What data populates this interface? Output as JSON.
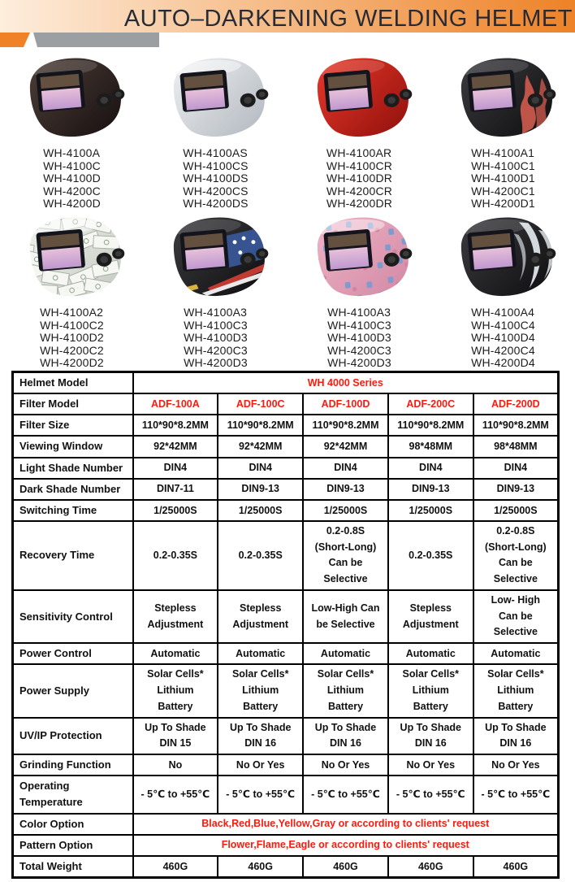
{
  "header": {
    "title": "AUTO–DARKENING WELDING HELMET",
    "title_color": "#262b36",
    "gradient_left": "#fdeedd",
    "gradient_right": "#ee8227",
    "accent_orange": "#ef8227",
    "accent_gray": "#9b9fa2"
  },
  "products": {
    "rows": [
      [
        {
          "style": "black",
          "models": [
            "WH-4100A",
            "WH-4100C",
            "WH-4100D",
            "WH-4200C",
            "WH-4200D"
          ]
        },
        {
          "style": "silver",
          "models": [
            "WH-4100AS",
            "WH-4100CS",
            "WH-4100DS",
            "WH-4200CS",
            "WH-4200DS"
          ]
        },
        {
          "style": "red",
          "models": [
            "WH-4100AR",
            "WH-4100CR",
            "WH-4100DR",
            "WH-4200CR",
            "WH-4200DR"
          ]
        },
        {
          "style": "flame",
          "models": [
            "WH-4100A1",
            "WH-4100C1",
            "WH-4100D1",
            "WH-4200C1",
            "WH-4200D1"
          ]
        }
      ],
      [
        {
          "style": "money",
          "models": [
            "WH-4100A2",
            "WH-4100C2",
            "WH-4100D2",
            "WH-4200C2",
            "WH-4200D2"
          ]
        },
        {
          "style": "eagle",
          "models": [
            "WH-4100A3",
            "WH-4100C3",
            "WH-4100D3",
            "WH-4200C3",
            "WH-4200D3"
          ]
        },
        {
          "style": "floral",
          "models": [
            "WH-4100A3",
            "WH-4100C3",
            "WH-4100D3",
            "WH-4200C3",
            "WH-4200D3"
          ]
        },
        {
          "style": "tribal",
          "models": [
            "WH-4100A4",
            "WH-4100C4",
            "WH-4100D4",
            "WH-4200C4",
            "WH-4200D4"
          ]
        }
      ]
    ],
    "styles": {
      "black": {
        "name": "black-helmet",
        "body1": "#4d3e37",
        "body2": "#171010",
        "accent": ""
      },
      "silver": {
        "name": "silver-helmet",
        "body1": "#eef0f2",
        "body2": "#b2b8bf",
        "accent": ""
      },
      "red": {
        "name": "red-helmet",
        "body1": "#e8392a",
        "body2": "#90100c",
        "accent": ""
      },
      "flame": {
        "name": "black-flame-helmet",
        "body1": "#3c3c40",
        "body2": "#0e0e10",
        "accent": "#c8574b"
      },
      "money": {
        "name": "dollar-print-helmet",
        "body1": "#f0f2ec",
        "body2": "#c4cac2",
        "accent": "#a5aea4"
      },
      "eagle": {
        "name": "flag-eagle-helmet",
        "body1": "#3c3c40",
        "body2": "#0e0e10",
        "accent": "#3a5a9c"
      },
      "floral": {
        "name": "floral-print-helmet",
        "body1": "#eeb3c6",
        "body2": "#d289a4",
        "accent": "#6f9bd2"
      },
      "tribal": {
        "name": "black-tribal-helmet",
        "body1": "#3c3c40",
        "body2": "#0e0e10",
        "accent": "#d4d9dd"
      }
    },
    "lens": {
      "frame": "#14141c",
      "band": "#63503f",
      "lens1": "#e7c0da",
      "lens2": "#bf98cf",
      "knob": "#1c1c1c"
    }
  },
  "table": {
    "red": "#fb1b0e",
    "rows": [
      {
        "label": "Helmet Model",
        "span": "WH 4000 Series",
        "red": true
      },
      {
        "label": "Filter Model",
        "red": true,
        "cells": [
          "ADF-100A",
          "ADF-100C",
          "ADF-100D",
          "ADF-200C",
          "ADF-200D"
        ]
      },
      {
        "label": "Filter Size",
        "cells": [
          "110*90*8.2MM",
          "110*90*8.2MM",
          "110*90*8.2MM",
          "110*90*8.2MM",
          "110*90*8.2MM"
        ]
      },
      {
        "label": "Viewing Window",
        "cells": [
          "92*42MM",
          "92*42MM",
          "92*42MM",
          "98*48MM",
          "98*48MM"
        ]
      },
      {
        "label": "Light Shade Number",
        "cells": [
          "DIN4",
          "DIN4",
          "DIN4",
          "DIN4",
          "DIN4"
        ]
      },
      {
        "label": "Dark Shade Number",
        "cells": [
          "DIN7-11",
          "DIN9-13",
          "DIN9-13",
          "DIN9-13",
          "DIN9-13"
        ]
      },
      {
        "label": "Switching Time",
        "cells": [
          "1/25000S",
          "1/25000S",
          "1/25000S",
          "1/25000S",
          "1/25000S"
        ]
      },
      {
        "label": "Recovery Time",
        "cells": [
          "0.2-0.35S",
          "0.2-0.35S",
          [
            "0.2-0.8S",
            "(Short-Long)",
            "Can be",
            "Selective"
          ],
          "0.2-0.35S",
          [
            "0.2-0.8S",
            "(Short-Long)",
            "Can be",
            "Selective"
          ]
        ]
      },
      {
        "label": "Sensitivity Control",
        "cells": [
          [
            "Stepless",
            "Adjustment"
          ],
          [
            "Stepless",
            "Adjustment"
          ],
          [
            "Low-High Can",
            "be Selective"
          ],
          [
            "Stepless",
            "Adjustment"
          ],
          [
            "Low- High",
            "Can be",
            "Selective"
          ]
        ]
      },
      {
        "label": "Power Control",
        "cells": [
          "Automatic",
          "Automatic",
          "Automatic",
          "Automatic",
          "Automatic"
        ]
      },
      {
        "label": "Power Supply",
        "cells": [
          [
            "Solar Cells*",
            "Lithium",
            "Battery"
          ],
          [
            "Solar Cells*",
            "Lithium",
            "Battery"
          ],
          [
            "Solar Cells*",
            "Lithium",
            "Battery"
          ],
          [
            "Solar Cells*",
            "Lithium",
            "Battery"
          ],
          [
            "Solar Cells*",
            "Lithium",
            "Battery"
          ]
        ]
      },
      {
        "label": "UV/IP Protection",
        "cells": [
          [
            "Up To Shade",
            "DIN 15"
          ],
          [
            "Up To Shade",
            "DIN 16"
          ],
          [
            "Up To Shade",
            "DIN 16"
          ],
          [
            "Up To Shade",
            "DIN 16"
          ],
          [
            "Up To Shade",
            "DIN 16"
          ]
        ]
      },
      {
        "label": "Grinding Function",
        "cells": [
          "No",
          "No Or Yes",
          "No Or Yes",
          "No Or Yes",
          "No Or Yes"
        ]
      },
      {
        "label": "Operating Temperature",
        "cells": [
          "- 5℃ to +55℃",
          "- 5℃ to +55℃",
          "- 5℃ to +55℃",
          "- 5℃ to +55℃",
          "- 5℃ to +55℃"
        ]
      },
      {
        "label": "Color Option",
        "span": "Black,Red,Blue,Yellow,Gray or according to clients' request",
        "red": true
      },
      {
        "label": "Pattern Option",
        "span": "Flower,Flame,Eagle or according to clients' request",
        "red": true
      },
      {
        "label": "Total Weight",
        "cells": [
          "460G",
          "460G",
          "460G",
          "460G",
          "460G"
        ]
      }
    ]
  }
}
